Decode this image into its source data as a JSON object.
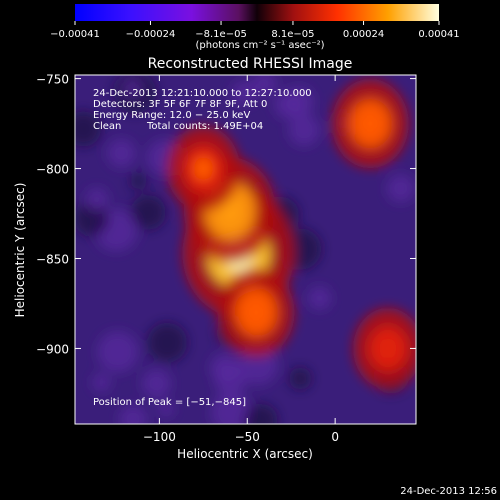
{
  "chart_data": {
    "type": "heatmap",
    "title": "Reconstructed RHESSI Image",
    "xlabel": "Heliocentric X (arcsec)",
    "ylabel": "Heliocentric Y (arcsec)",
    "xlim": [
      -148,
      46
    ],
    "ylim": [
      -942,
      -748
    ],
    "x_ticks": [
      -100,
      -50,
      0
    ],
    "x_tick_labels": [
      "−100",
      "−50",
      "0"
    ],
    "y_ticks": [
      -750,
      -800,
      -850,
      -900
    ],
    "y_tick_labels": [
      "−750",
      "−800",
      "−850",
      "−900"
    ],
    "colorbar": {
      "ticks": [
        -0.00041,
        -0.00024,
        -8.1e-05,
        8.1e-05,
        0.00024,
        0.00041
      ],
      "tick_labels": [
        "−0.00041",
        "−0.00024",
        "−8.1e−05",
        "8.1e−05",
        "0.00024",
        "0.00041"
      ],
      "unit_label": "(photons cm⁻² s⁻¹ asec⁻²)",
      "range": [
        -0.00041,
        0.00041
      ]
    },
    "peak": {
      "x": -51,
      "y": -845
    },
    "info": {
      "time_range": "24-Dec-2013 12:21:10.000 to 12:27:10.000",
      "detectors": "Detectors: 3F 5F 6F 7F 8F 9F, Att 0",
      "energy": "Energy Range: 12.0 − 25.0 keV",
      "method": "Clean",
      "total_counts": "Total counts: 1.49E+04",
      "peak_text": "Position of Peak = [−51,−845]"
    },
    "emission_regions": [
      {
        "x": -55,
        "y": -847,
        "intensity": 0.00041
      },
      {
        "x": -60,
        "y": -823,
        "intensity": 0.0003
      },
      {
        "x": -45,
        "y": -880,
        "intensity": 0.00022
      },
      {
        "x": -75,
        "y": -800,
        "intensity": 0.0002
      },
      {
        "x": 20,
        "y": -775,
        "intensity": 0.00022
      },
      {
        "x": 30,
        "y": -900,
        "intensity": 0.00018
      }
    ]
  },
  "footer": {
    "timestamp": "24-Dec-2013 12:56"
  }
}
